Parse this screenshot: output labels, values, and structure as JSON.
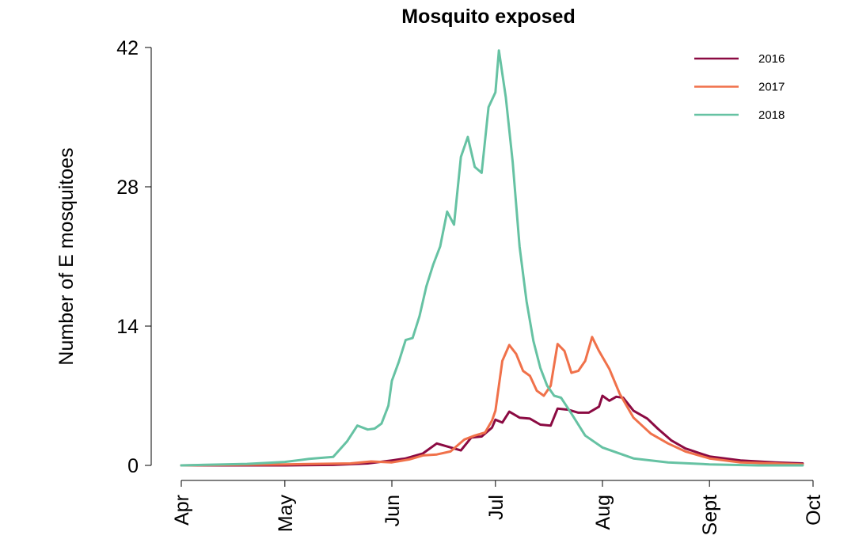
{
  "chart_data": {
    "type": "line",
    "title": "Mosquito exposed",
    "xlabel": "",
    "ylabel": "Number of E mosquitoes",
    "xlim": [
      "2018-04-01",
      "2018-10-01"
    ],
    "ylim": [
      0,
      42
    ],
    "yticks": [
      0,
      14,
      28,
      42
    ],
    "xticks": [
      {
        "label": "Apr",
        "date": "2018-04-01"
      },
      {
        "label": "May",
        "date": "2018-05-01"
      },
      {
        "label": "Jun",
        "date": "2018-06-01"
      },
      {
        "label": "Jul",
        "date": "2018-07-01"
      },
      {
        "label": "Aug",
        "date": "2018-08-01"
      },
      {
        "label": "Sept",
        "date": "2018-09-01"
      },
      {
        "label": "Oct",
        "date": "2018-10-01"
      }
    ],
    "grid": false,
    "legend_position": "top-right",
    "series": [
      {
        "name": "2016",
        "color": "#8b0a42",
        "x": [
          "2018-04-01",
          "2018-04-15",
          "2018-05-01",
          "2018-05-15",
          "2018-05-25",
          "2018-06-01",
          "2018-06-05",
          "2018-06-10",
          "2018-06-14",
          "2018-06-17",
          "2018-06-21",
          "2018-06-24",
          "2018-06-27",
          "2018-06-30",
          "2018-07-01",
          "2018-07-03",
          "2018-07-05",
          "2018-07-08",
          "2018-07-11",
          "2018-07-14",
          "2018-07-17",
          "2018-07-19",
          "2018-07-22",
          "2018-07-25",
          "2018-07-28",
          "2018-07-31",
          "2018-08-01",
          "2018-08-03",
          "2018-08-05",
          "2018-08-07",
          "2018-08-10",
          "2018-08-14",
          "2018-08-17",
          "2018-08-21",
          "2018-08-25",
          "2018-09-01",
          "2018-09-10",
          "2018-09-20",
          "2018-09-28"
        ],
        "values": [
          0.0,
          0.0,
          0.0,
          0.05,
          0.2,
          0.5,
          0.7,
          1.2,
          2.2,
          1.9,
          1.5,
          2.8,
          2.9,
          3.8,
          4.6,
          4.3,
          5.4,
          4.8,
          4.7,
          4.1,
          4.0,
          5.7,
          5.6,
          5.3,
          5.3,
          5.9,
          7.0,
          6.5,
          6.9,
          6.8,
          5.5,
          4.7,
          3.7,
          2.5,
          1.7,
          0.9,
          0.5,
          0.3,
          0.2
        ]
      },
      {
        "name": "2017",
        "color": "#f0714a",
        "x": [
          "2018-04-01",
          "2018-05-01",
          "2018-05-20",
          "2018-05-26",
          "2018-06-01",
          "2018-06-06",
          "2018-06-10",
          "2018-06-14",
          "2018-06-18",
          "2018-06-22",
          "2018-06-25",
          "2018-06-28",
          "2018-06-30",
          "2018-07-01",
          "2018-07-03",
          "2018-07-05",
          "2018-07-07",
          "2018-07-09",
          "2018-07-11",
          "2018-07-13",
          "2018-07-15",
          "2018-07-17",
          "2018-07-19",
          "2018-07-21",
          "2018-07-23",
          "2018-07-25",
          "2018-07-27",
          "2018-07-29",
          "2018-07-31",
          "2018-08-03",
          "2018-08-06",
          "2018-08-10",
          "2018-08-15",
          "2018-08-20",
          "2018-08-25",
          "2018-09-01",
          "2018-09-10",
          "2018-09-20",
          "2018-09-28"
        ],
        "values": [
          0.0,
          0.1,
          0.2,
          0.4,
          0.3,
          0.6,
          1.0,
          1.1,
          1.4,
          2.6,
          3.0,
          3.3,
          4.5,
          5.5,
          10.5,
          12.1,
          11.2,
          9.5,
          9.0,
          7.5,
          7.0,
          8.0,
          12.2,
          11.5,
          9.3,
          9.5,
          10.5,
          12.9,
          11.5,
          9.7,
          7.2,
          4.8,
          3.2,
          2.2,
          1.4,
          0.7,
          0.3,
          0.2,
          0.1
        ]
      },
      {
        "name": "2018",
        "color": "#66c2a3",
        "x": [
          "2018-04-01",
          "2018-04-20",
          "2018-05-01",
          "2018-05-08",
          "2018-05-15",
          "2018-05-19",
          "2018-05-22",
          "2018-05-25",
          "2018-05-27",
          "2018-05-29",
          "2018-05-31",
          "2018-06-01",
          "2018-06-03",
          "2018-06-05",
          "2018-06-07",
          "2018-06-09",
          "2018-06-11",
          "2018-06-13",
          "2018-06-15",
          "2018-06-17",
          "2018-06-19",
          "2018-06-21",
          "2018-06-23",
          "2018-06-25",
          "2018-06-27",
          "2018-06-29",
          "2018-07-01",
          "2018-07-02",
          "2018-07-04",
          "2018-07-06",
          "2018-07-08",
          "2018-07-10",
          "2018-07-12",
          "2018-07-14",
          "2018-07-16",
          "2018-07-18",
          "2018-07-20",
          "2018-07-23",
          "2018-07-27",
          "2018-08-01",
          "2018-08-10",
          "2018-08-20",
          "2018-09-01",
          "2018-09-15",
          "2018-09-28"
        ],
        "values": [
          0.0,
          0.15,
          0.35,
          0.65,
          0.85,
          2.4,
          4.0,
          3.6,
          3.7,
          4.2,
          6.0,
          8.5,
          10.4,
          12.6,
          12.8,
          15.0,
          18.0,
          20.2,
          22.0,
          25.5,
          24.2,
          31.0,
          33.0,
          30.0,
          29.4,
          36.0,
          37.5,
          41.7,
          37.0,
          30.5,
          22.0,
          16.5,
          12.5,
          9.8,
          8.0,
          7.0,
          6.8,
          5.2,
          3.0,
          1.8,
          0.7,
          0.3,
          0.1,
          0.0,
          0.0
        ]
      }
    ]
  }
}
